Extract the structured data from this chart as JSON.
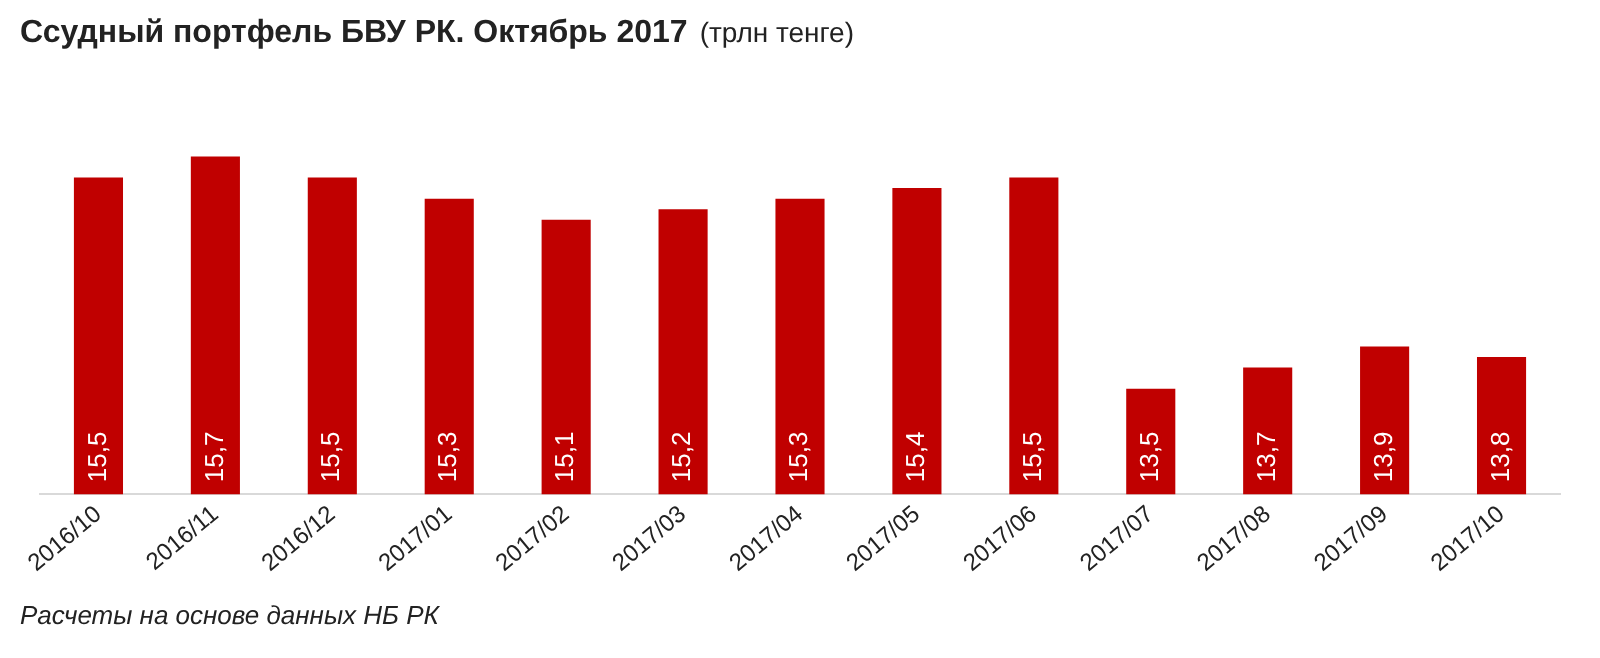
{
  "chart_data": {
    "type": "bar",
    "title": "Ссудный портфель БВУ РК. Октябрь 2017",
    "subtitle": "(трлн тенге)",
    "categories": [
      "2016/10",
      "2016/11",
      "2016/12",
      "2017/01",
      "2017/02",
      "2017/03",
      "2017/04",
      "2017/05",
      "2017/06",
      "2017/07",
      "2017/08",
      "2017/09",
      "2017/10"
    ],
    "values": [
      15.5,
      15.7,
      15.5,
      15.3,
      15.1,
      15.2,
      15.3,
      15.4,
      15.5,
      13.5,
      13.7,
      13.9,
      13.8
    ],
    "value_labels": [
      "15,5",
      "15,7",
      "15,5",
      "15,3",
      "15,1",
      "15,2",
      "15,3",
      "15,4",
      "15,5",
      "13,5",
      "13,7",
      "13,9",
      "13,8"
    ],
    "color": "#c00000",
    "tick_labels": "x",
    "grid": false,
    "legend": false,
    "annotations": [
      "Расчеты на основе данных НБ РК"
    ]
  }
}
